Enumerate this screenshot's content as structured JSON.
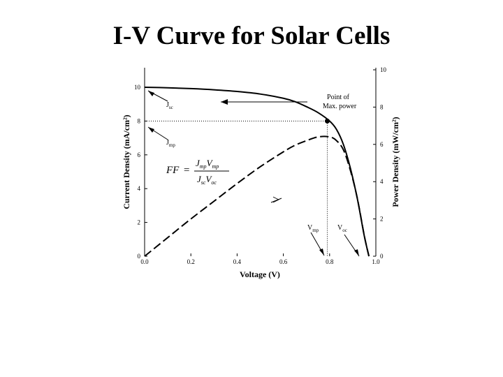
{
  "page": {
    "title": "I-V Curve for Solar Cells"
  },
  "chart_data": {
    "type": "line",
    "title": "I-V Curve for Solar Cells",
    "xlabel": "Voltage (V)",
    "ylabel_left": "Current Density (mA/cm²)",
    "ylabel_right": "Power Density (mW/cm²)",
    "xlim": [
      0,
      1.0
    ],
    "ylim_left": [
      0,
      10
    ],
    "ylim_right": [
      0,
      10
    ],
    "grid": false,
    "x_ticks": [
      "0.0",
      "0.2",
      "0.4",
      "0.6",
      "0.8",
      "1.0"
    ],
    "y_left_ticks": [
      "0",
      "2",
      "4",
      "6",
      "8",
      "10"
    ],
    "y_right_ticks": [
      "0",
      "2",
      "4",
      "6",
      "8",
      "10"
    ],
    "series": [
      {
        "axis": "left",
        "style": "solid",
        "x": [
          0,
          0.1,
          0.2,
          0.3,
          0.4,
          0.5,
          0.6,
          0.65,
          0.7,
          0.75,
          0.8,
          0.83,
          0.86,
          0.89,
          0.92,
          0.95,
          0.97
        ],
        "y": [
          10,
          9.97,
          9.92,
          9.85,
          9.75,
          9.6,
          9.35,
          9.15,
          8.85,
          8.5,
          8.0,
          7.5,
          6.6,
          5.2,
          3.4,
          1.2,
          0
        ]
      },
      {
        "axis": "right",
        "style": "dashed",
        "x": [
          0,
          0.1,
          0.2,
          0.3,
          0.4,
          0.5,
          0.6,
          0.65,
          0.7,
          0.75,
          0.8,
          0.83,
          0.86,
          0.89,
          0.92,
          0.95,
          0.97
        ],
        "y": [
          0,
          1.0,
          2.0,
          2.95,
          3.9,
          4.8,
          5.6,
          5.95,
          6.2,
          6.4,
          6.4,
          6.2,
          5.7,
          4.6,
          3.1,
          1.1,
          0
        ]
      }
    ],
    "max_power_point": {
      "x": 0.79,
      "y": 8.0
    },
    "annotations": {
      "jsc": "J",
      "jsc_sub": "sc",
      "jmp": "J",
      "jmp_sub": "mp",
      "vmp": "V",
      "vmp_sub": "mp",
      "voc": "V",
      "voc_sub": "oc",
      "pmax_line1": "Point of",
      "pmax_line2": "Max. power",
      "ff_lhs": "FF",
      "ff_eq": "=",
      "ff_num_j": "J",
      "ff_num_j_sub": "mp",
      "ff_num_v": "V",
      "ff_num_v_sub": "mp",
      "ff_den_j": "J",
      "ff_den_j_sub": "sc",
      "ff_den_v": "V",
      "ff_den_v_sub": "oc",
      "gt_symbol": ">"
    }
  }
}
